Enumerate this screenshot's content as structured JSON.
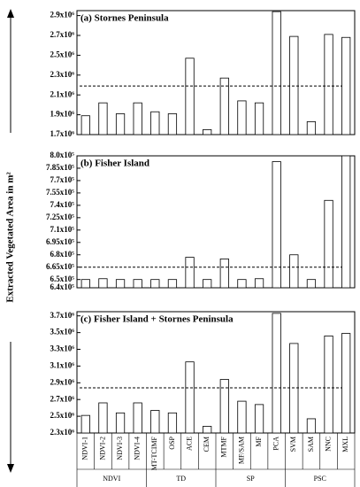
{
  "y_label": "Extracted Vegetated Area in m²",
  "chart_data": [
    {
      "type": "bar",
      "title": "(a) Stornes Peninsula",
      "values": [
        1890000,
        2020000,
        1910000,
        2020000,
        1930000,
        1910000,
        2470000,
        1750000,
        2270000,
        2040000,
        2020000,
        2940000,
        2690000,
        1830000,
        2710000,
        2680000
      ],
      "color": "#ffffff",
      "reference": 2190000,
      "ylim": [
        1700000,
        2950000
      ],
      "yticks": [
        {
          "value": 1700000,
          "label": "1.7x10⁶"
        },
        {
          "value": 1900000,
          "label": "1.9x10⁶"
        },
        {
          "value": 2100000,
          "label": "2.1x10⁶"
        },
        {
          "value": 2300000,
          "label": "2.3x10⁶"
        },
        {
          "value": 2500000,
          "label": "2.5x10⁶"
        },
        {
          "value": 2700000,
          "label": "2.7x10⁶"
        },
        {
          "value": 2900000,
          "label": "2.9x10⁶"
        }
      ]
    },
    {
      "type": "bar",
      "title": "(b) Fisher Island",
      "values": [
        650000,
        651000,
        650000,
        650000,
        650000,
        650000,
        677000,
        650000,
        675000,
        650000,
        651000,
        793000,
        680000,
        650000,
        746000,
        800000
      ],
      "color": "#ffffff",
      "reference": 665000,
      "ylim": [
        640000,
        800000
      ],
      "yticks": [
        {
          "value": 640000,
          "label": "6.4x10⁵"
        },
        {
          "value": 650000,
          "label": "6.5x10⁵"
        },
        {
          "value": 665000,
          "label": "6.65x10⁵"
        },
        {
          "value": 680000,
          "label": "6.8x10⁵"
        },
        {
          "value": 695000,
          "label": "6.95x10⁵"
        },
        {
          "value": 710000,
          "label": "7.1x10⁵"
        },
        {
          "value": 725000,
          "label": "7.25x10⁵"
        },
        {
          "value": 740000,
          "label": "7.4x10⁵"
        },
        {
          "value": 755000,
          "label": "7.55x10⁵"
        },
        {
          "value": 770000,
          "label": "7.7x10⁵"
        },
        {
          "value": 785000,
          "label": "7.85x10⁵"
        },
        {
          "value": 800000,
          "label": "8.0x10⁵"
        }
      ]
    },
    {
      "type": "bar",
      "title": "(c) Fisher Island + Stornes Peninsula",
      "categories": [
        "NDVI-1",
        "NDVI-2",
        "NDVI-3",
        "NDVI-4",
        "MT-TCIMF",
        "OSP",
        "ACE",
        "CEM",
        "MTMF",
        "MF/SAM",
        "MF",
        "PCA",
        "SVM",
        "SAM",
        "NNC",
        "MXL"
      ],
      "groups": [
        "NDVI",
        "TD",
        "SP",
        "PSC"
      ],
      "values": [
        2510000,
        2660000,
        2540000,
        2660000,
        2570000,
        2540000,
        3150000,
        2380000,
        2940000,
        2680000,
        2640000,
        3730000,
        3370000,
        2470000,
        3460000,
        3490000
      ],
      "color": "#ffffff",
      "reference": 2840000,
      "ylim": [
        2300000,
        3750000
      ],
      "yticks": [
        {
          "value": 2300000,
          "label": "2.3x10⁶"
        },
        {
          "value": 2500000,
          "label": "2.5x10⁶"
        },
        {
          "value": 2700000,
          "label": "2.7x10⁶"
        },
        {
          "value": 2900000,
          "label": "2.9x10⁶"
        },
        {
          "value": 3100000,
          "label": "3.1x10⁶"
        },
        {
          "value": 3300000,
          "label": "3.3x10⁶"
        },
        {
          "value": 3500000,
          "label": "3.5x10⁶"
        },
        {
          "value": 3700000,
          "label": "3.7x10⁶"
        }
      ]
    }
  ]
}
